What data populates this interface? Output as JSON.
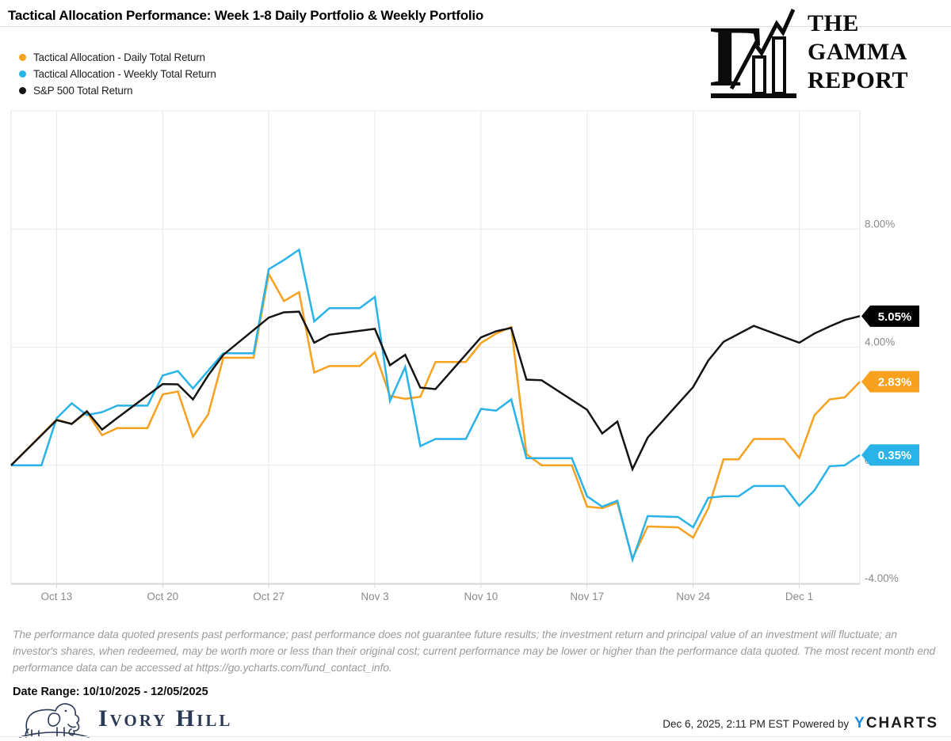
{
  "header": {
    "title": "Tactical Allocation Performance: Week 1-8 Daily Portfolio & Weekly Portfolio",
    "logo": {
      "line1": "THE",
      "line2": "GAMMA",
      "line3": "REPORT"
    }
  },
  "chart_data": {
    "type": "line",
    "title": "Tactical Allocation Performance: Week 1-8 Daily Portfolio & Weekly Portfolio",
    "x_axis": {
      "domain_days": [
        0,
        56
      ],
      "start_date": "10/10/2025",
      "end_date": "12/05/2025",
      "ticks": [
        {
          "day": 3,
          "label": "Oct 13"
        },
        {
          "day": 10,
          "label": "Oct 20"
        },
        {
          "day": 17,
          "label": "Oct 27"
        },
        {
          "day": 24,
          "label": "Nov 3"
        },
        {
          "day": 31,
          "label": "Nov 10"
        },
        {
          "day": 38,
          "label": "Nov 17"
        },
        {
          "day": 45,
          "label": "Nov 24"
        },
        {
          "day": 52,
          "label": "Dec 1"
        }
      ]
    },
    "y_axis": {
      "range": [
        -4,
        12
      ],
      "grid": true,
      "ticks": [
        {
          "value": 8,
          "label": "8.00%"
        },
        {
          "value": 4,
          "label": "4.00%"
        },
        {
          "value": 0,
          "label": "0.00%"
        },
        {
          "value": -4,
          "label": "-4.00%"
        }
      ]
    },
    "series": [
      {
        "name": "Tactical Allocation - Daily Total Return",
        "color": "#F8A11E",
        "end_label": "2.83%",
        "end_value": 2.83,
        "points": [
          [
            0,
            0.0
          ],
          [
            3,
            1.55
          ],
          [
            4,
            1.4
          ],
          [
            5,
            1.8
          ],
          [
            6,
            1.02
          ],
          [
            7,
            1.26
          ],
          [
            9,
            1.26
          ],
          [
            10,
            2.4
          ],
          [
            11,
            2.5
          ],
          [
            12,
            0.97
          ],
          [
            13,
            1.72
          ],
          [
            14,
            3.64
          ],
          [
            16,
            3.64
          ],
          [
            17,
            6.48
          ],
          [
            18,
            5.56
          ],
          [
            19,
            5.86
          ],
          [
            20,
            3.14
          ],
          [
            21,
            3.36
          ],
          [
            23,
            3.36
          ],
          [
            24,
            3.82
          ],
          [
            25,
            2.35
          ],
          [
            26,
            2.25
          ],
          [
            27,
            2.32
          ],
          [
            28,
            3.5
          ],
          [
            30,
            3.5
          ],
          [
            31,
            4.14
          ],
          [
            32,
            4.46
          ],
          [
            33,
            4.68
          ],
          [
            34,
            0.38
          ],
          [
            35,
            0.0
          ],
          [
            37,
            0.0
          ],
          [
            38,
            -1.4
          ],
          [
            39,
            -1.45
          ],
          [
            40,
            -1.26
          ],
          [
            41,
            -3.15
          ],
          [
            42,
            -2.07
          ],
          [
            44,
            -2.1
          ],
          [
            45,
            -2.45
          ],
          [
            46,
            -1.45
          ],
          [
            47,
            0.2
          ],
          [
            48,
            0.2
          ],
          [
            49,
            0.89
          ],
          [
            51,
            0.89
          ],
          [
            52,
            0.25
          ],
          [
            53,
            1.69
          ],
          [
            54,
            2.23
          ],
          [
            55,
            2.3
          ],
          [
            56,
            2.83
          ]
        ]
      },
      {
        "name": "Tactical Allocation - Weekly Total Return",
        "color": "#29B3E8",
        "end_label": "0.35%",
        "end_value": 0.35,
        "points": [
          [
            0,
            0.0
          ],
          [
            2,
            0.0
          ],
          [
            3,
            1.59
          ],
          [
            4,
            2.1
          ],
          [
            5,
            1.7
          ],
          [
            6,
            1.8
          ],
          [
            7,
            2.02
          ],
          [
            9,
            2.02
          ],
          [
            10,
            3.04
          ],
          [
            11,
            3.19
          ],
          [
            12,
            2.6
          ],
          [
            13,
            3.2
          ],
          [
            14,
            3.79
          ],
          [
            16,
            3.79
          ],
          [
            17,
            6.64
          ],
          [
            18,
            6.95
          ],
          [
            19,
            7.3
          ],
          [
            20,
            4.87
          ],
          [
            21,
            5.32
          ],
          [
            23,
            5.32
          ],
          [
            24,
            5.7
          ],
          [
            25,
            2.18
          ],
          [
            26,
            3.33
          ],
          [
            27,
            0.65
          ],
          [
            28,
            0.89
          ],
          [
            30,
            0.89
          ],
          [
            31,
            1.91
          ],
          [
            32,
            1.85
          ],
          [
            33,
            2.23
          ],
          [
            34,
            0.24
          ],
          [
            35,
            0.24
          ],
          [
            37,
            0.24
          ],
          [
            38,
            -1.05
          ],
          [
            39,
            -1.4
          ],
          [
            40,
            -1.2
          ],
          [
            41,
            -3.2
          ],
          [
            42,
            -1.72
          ],
          [
            44,
            -1.75
          ],
          [
            45,
            -2.1
          ],
          [
            46,
            -1.1
          ],
          [
            47,
            -1.05
          ],
          [
            48,
            -1.05
          ],
          [
            49,
            -0.7
          ],
          [
            51,
            -0.7
          ],
          [
            52,
            -1.37
          ],
          [
            53,
            -0.85
          ],
          [
            54,
            -0.03
          ],
          [
            55,
            0.0
          ],
          [
            56,
            0.35
          ]
        ]
      },
      {
        "name": "S&P 500 Total Return",
        "color": "#141414",
        "end_label": "5.05%",
        "end_value": 5.05,
        "points": [
          [
            0,
            0.0
          ],
          [
            3,
            1.53
          ],
          [
            4,
            1.4
          ],
          [
            5,
            1.83
          ],
          [
            6,
            1.21
          ],
          [
            7,
            1.6
          ],
          [
            10,
            2.75
          ],
          [
            11,
            2.74
          ],
          [
            12,
            2.23
          ],
          [
            13,
            3.04
          ],
          [
            14,
            3.74
          ],
          [
            17,
            5.0
          ],
          [
            18,
            5.18
          ],
          [
            19,
            5.2
          ],
          [
            20,
            4.15
          ],
          [
            21,
            4.42
          ],
          [
            24,
            4.62
          ],
          [
            25,
            3.39
          ],
          [
            26,
            3.74
          ],
          [
            27,
            2.63
          ],
          [
            28,
            2.58
          ],
          [
            31,
            4.33
          ],
          [
            32,
            4.54
          ],
          [
            33,
            4.65
          ],
          [
            34,
            2.9
          ],
          [
            35,
            2.88
          ],
          [
            38,
            1.88
          ],
          [
            39,
            1.08
          ],
          [
            40,
            1.48
          ],
          [
            41,
            -0.13
          ],
          [
            42,
            0.94
          ],
          [
            45,
            2.65
          ],
          [
            46,
            3.55
          ],
          [
            47,
            4.18
          ],
          [
            49,
            4.72
          ],
          [
            52,
            4.15
          ],
          [
            53,
            4.46
          ],
          [
            54,
            4.7
          ],
          [
            55,
            4.92
          ],
          [
            56,
            5.05
          ]
        ]
      }
    ]
  },
  "disclaimer": "The performance data quoted presents past performance; past performance does not guarantee future results; the investment return and principal value of an investment will fluctuate; an investor's shares, when redeemed, may be worth more or less than their original cost; current performance may be lower or higher than the performance data quoted. The most recent month end performance data can be accessed at https://go.ycharts.com/fund_contact_info.",
  "date_range": "Date Range: 10/10/2025 - 12/05/2025",
  "ivory_hill": {
    "wordmark": "Ivory Hill"
  },
  "footer": {
    "timestamp": "Dec 6, 2025, 2:11 PM EST",
    "powered_by": "Powered by",
    "ycharts_y": "Y",
    "ycharts_rest": "CHARTS"
  },
  "colors": {
    "daily_orange": "#F8A11E",
    "weekly_cyan": "#29B3E8",
    "sp500_black": "#141414",
    "gridline": "#E8E8E8",
    "axis_label": "#8a8a8a",
    "navy": "#2C3B55",
    "ycharts_blue": "#1A8FE3"
  }
}
